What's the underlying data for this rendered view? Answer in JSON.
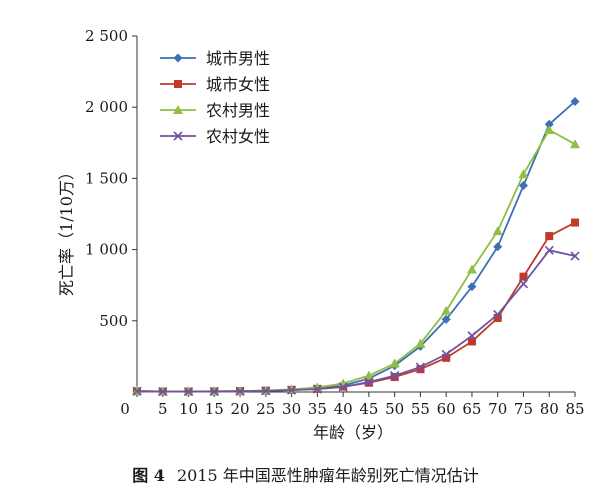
{
  "caption": {
    "figure_number": "图 4",
    "text": "2015 年中国恶性肿瘤年龄别死亡情况估计"
  },
  "chart_data": {
    "type": "line",
    "title": "",
    "xlabel": "年龄（岁）",
    "ylabel": "死亡率（1/10万）",
    "x": [
      0,
      5,
      10,
      15,
      20,
      25,
      30,
      35,
      40,
      45,
      50,
      55,
      60,
      65,
      70,
      75,
      80,
      85
    ],
    "x_tick_labels": [
      "0",
      "5",
      "10",
      "15",
      "20",
      "25",
      "30",
      "35",
      "40",
      "45",
      "50",
      "55",
      "60",
      "65",
      "70",
      "75",
      "80",
      "85"
    ],
    "y_tick_labels": [
      "500",
      "1 000",
      "1 500",
      "2 000",
      "2 500"
    ],
    "y_tick_values": [
      500,
      1000,
      1500,
      2000,
      2500
    ],
    "ylim": [
      0,
      2500
    ],
    "grid": false,
    "legend_position": "top-left",
    "series": [
      {
        "name": "城市男性",
        "color": "#3d6fb6",
        "marker": "diamond",
        "values": [
          6,
          3,
          3,
          4,
          5,
          8,
          14,
          25,
          45,
          95,
          185,
          320,
          510,
          740,
          1020,
          1450,
          1880,
          2040
        ]
      },
      {
        "name": "城市女性",
        "color": "#c0392b",
        "marker": "square",
        "values": [
          5,
          3,
          3,
          4,
          6,
          9,
          15,
          22,
          38,
          65,
          105,
          160,
          240,
          355,
          520,
          810,
          1095,
          1190
        ]
      },
      {
        "name": "农村男性",
        "color": "#8fbf45",
        "marker": "triangle",
        "values": [
          7,
          4,
          4,
          5,
          6,
          10,
          18,
          32,
          60,
          115,
          200,
          340,
          570,
          860,
          1130,
          1530,
          1840,
          1740
        ]
      },
      {
        "name": "农村女性",
        "color": "#6f52a3",
        "marker": "x",
        "values": [
          6,
          3,
          3,
          4,
          5,
          8,
          13,
          20,
          35,
          70,
          115,
          175,
          265,
          395,
          545,
          760,
          995,
          955
        ]
      }
    ]
  }
}
